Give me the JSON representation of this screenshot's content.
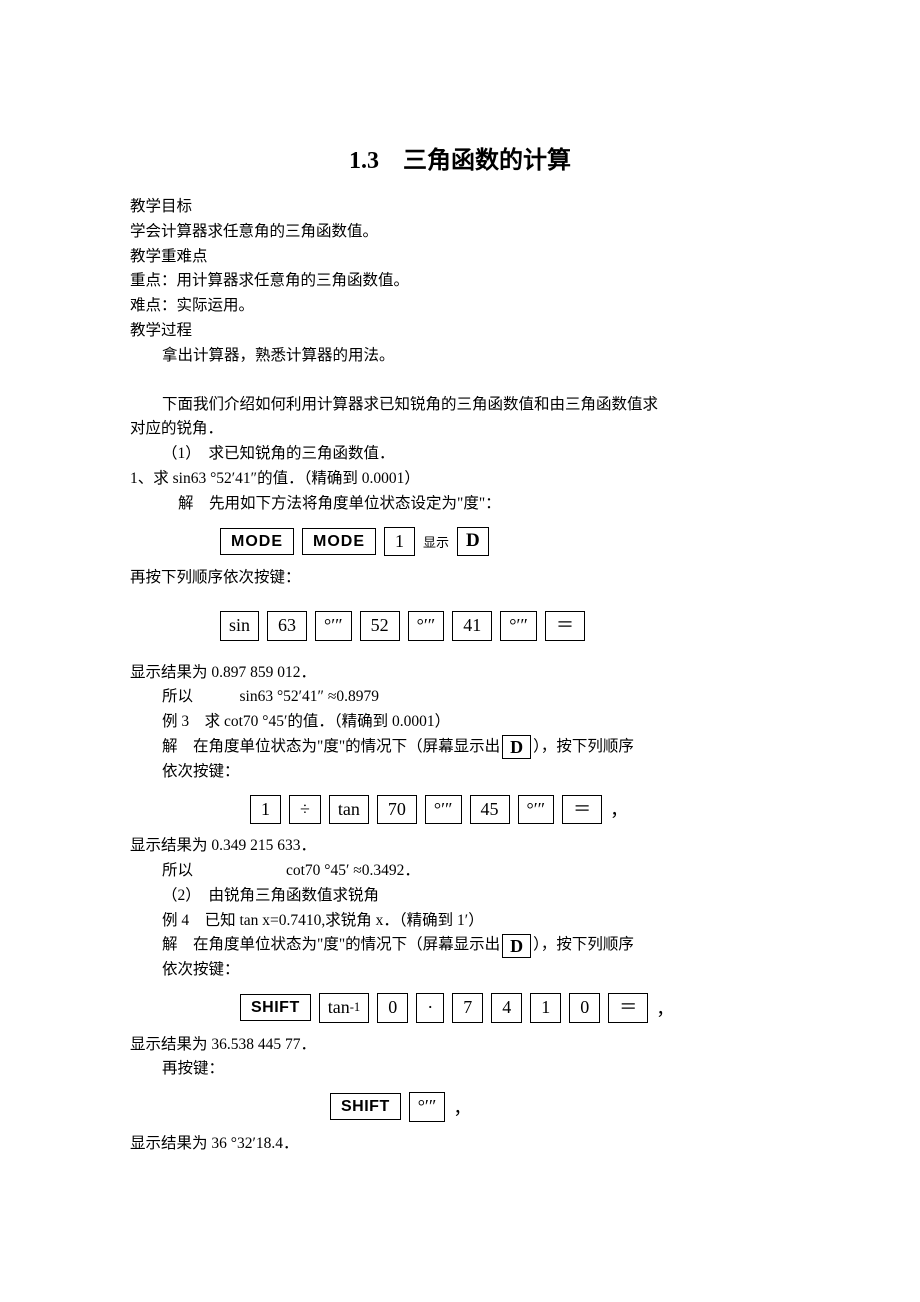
{
  "title": "1.3　三角函数的计算",
  "sec_objective": "教学目标",
  "objective1": "学会计算器求任意角的三角函数值。",
  "sec_difficulty": "教学重难点",
  "diff1": "重点：用计算器求任意角的三角函数值。",
  "diff2": "难点：实际运用。",
  "sec_process": "教学过程",
  "proc1": "拿出计算器，熟悉计算器的用法。",
  "proc2_a": "下面我们介绍如何利用计算器求已知锐角的三角函数值和由三角函数值求",
  "proc2_b": "对应的锐角．",
  "part1": "（1）　求已知锐角的三角函数值．",
  "ex1_prob": "1、求 sin63 °52′41″的值．（精确到 0.0001）",
  "ex1_step1": "解　先用如下方法将角度单位状态设定为\"度\"：",
  "keys_mode": {
    "k1": "MODE",
    "k2": "MODE",
    "k3": "1",
    "label": "显示",
    "k4": "D"
  },
  "ex1_step2": "再按下列顺序依次按键：",
  "keys_sin": {
    "k1": "sin",
    "k2": "63",
    "k3": "°′″",
    "k4": "52",
    "k5": "°′″",
    "k6": "41",
    "k7": "°′″",
    "k8": "＝"
  },
  "ex1_res": "显示结果为 0.897 859 012．",
  "ex1_ans": "所以　　　sin63 °52′41″ ≈0.8979",
  "ex3_prob": "例 3　求 cot70 °45′的值．（精确到 0.0001）",
  "ex3_step_a": "解　在角度单位状态为\"度\"的情况下（屏幕显示出",
  "ex3_step_b": "），按下列顺序",
  "ex3_step_c": "依次按键：",
  "keys_cot": {
    "k1": "1",
    "k2": "÷",
    "k3": "tan",
    "k4": "70",
    "k5": "°′″",
    "k6": "45",
    "k7": "°′″",
    "k8": "＝"
  },
  "ex3_res": "显示结果为 0.349 215 633．",
  "ex3_ans": "所以　　　　　　cot70 °45′ ≈0.3492．",
  "part2": "（2）　由锐角三角函数值求锐角",
  "ex4_prob": "例 4　已知 tan x=0.7410,求锐角 x．（精确到 1′）",
  "ex4_step_a": "解　在角度单位状态为\"度\"的情况下（屏幕显示出",
  "ex4_step_b": "），按下列顺序",
  "ex4_step_c": "依次按键：",
  "keys_inv": {
    "k1": "SHIFT",
    "k2": "tan⁻¹",
    "k3": "0",
    "k4": "·",
    "k5": "7",
    "k6": "4",
    "k7": "1",
    "k8": "0",
    "k9": "＝"
  },
  "ex4_res": "显示结果为 36.538 445 77．",
  "ex4_step2": "再按键：",
  "keys_dms": {
    "k1": "SHIFT",
    "k2": "°′″"
  },
  "ex4_res2": "显示结果为 36 °32′18.4．",
  "box_D": "D",
  "comma": "，",
  "colon": "："
}
